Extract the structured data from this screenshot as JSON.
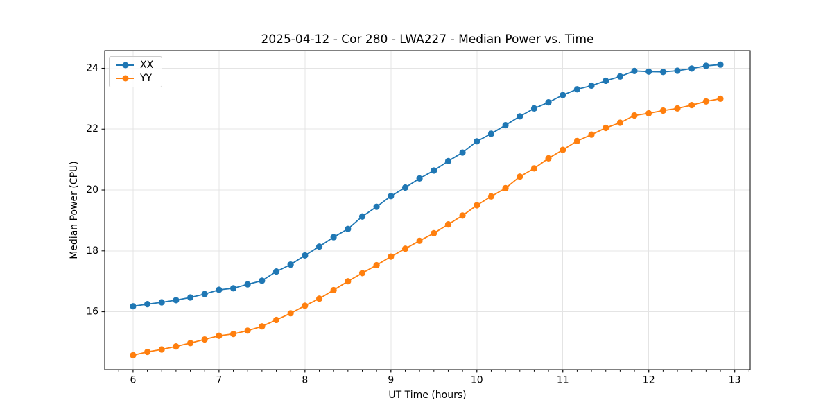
{
  "chart_data": {
    "type": "line",
    "title": "2025-04-12 - Cor 280 - LWA227 - Median Power vs. Time",
    "xlabel": "UT Time (hours)",
    "ylabel": "Median Power (CPU)",
    "xlim": [
      5.67,
      13.18
    ],
    "ylim": [
      14.1,
      24.58
    ],
    "x_ticks": [
      6,
      7,
      8,
      9,
      10,
      11,
      12,
      13
    ],
    "y_ticks": [
      16,
      18,
      20,
      22,
      24
    ],
    "x_minor_tick_step": 0.166667,
    "grid": true,
    "grid_color": "#e4e4e4",
    "legend_position": "upper-left",
    "x": [
      6.0,
      6.167,
      6.333,
      6.5,
      6.667,
      6.833,
      7.0,
      7.167,
      7.333,
      7.5,
      7.667,
      7.833,
      8.0,
      8.167,
      8.333,
      8.5,
      8.667,
      8.833,
      9.0,
      9.167,
      9.333,
      9.5,
      9.667,
      9.833,
      10.0,
      10.167,
      10.333,
      10.5,
      10.667,
      10.833,
      11.0,
      11.167,
      11.333,
      11.5,
      11.667,
      11.833,
      12.0,
      12.167,
      12.333,
      12.5,
      12.667,
      12.833
    ],
    "series": [
      {
        "name": "XX",
        "color": "#1f77b4",
        "values": [
          16.18,
          16.25,
          16.31,
          16.38,
          16.47,
          16.58,
          16.72,
          16.77,
          16.9,
          17.02,
          17.32,
          17.55,
          17.85,
          18.14,
          18.45,
          18.72,
          19.13,
          19.45,
          19.8,
          20.08,
          20.38,
          20.64,
          20.95,
          21.23,
          21.6,
          21.85,
          22.13,
          22.42,
          22.68,
          22.88,
          23.12,
          23.31,
          23.43,
          23.59,
          23.73,
          23.91,
          23.89,
          23.88,
          23.92,
          23.99,
          24.08,
          24.12
        ]
      },
      {
        "name": "YY",
        "color": "#ff7f0e",
        "values": [
          14.57,
          14.68,
          14.76,
          14.86,
          14.97,
          15.09,
          15.21,
          15.27,
          15.38,
          15.52,
          15.73,
          15.95,
          16.2,
          16.43,
          16.71,
          17.0,
          17.27,
          17.53,
          17.81,
          18.07,
          18.33,
          18.58,
          18.87,
          19.16,
          19.5,
          19.79,
          20.06,
          20.44,
          20.71,
          21.04,
          21.32,
          21.61,
          21.82,
          22.04,
          22.21,
          22.45,
          22.52,
          22.61,
          22.68,
          22.79,
          22.91,
          23.0
        ]
      }
    ]
  }
}
